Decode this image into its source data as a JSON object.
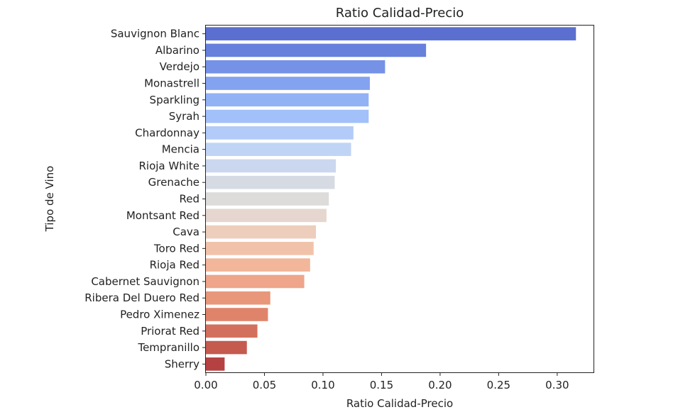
{
  "chart_data": {
    "type": "bar",
    "orientation": "horizontal",
    "title": "Ratio Calidad-Precio",
    "xlabel": "Ratio Calidad-Precio",
    "ylabel": "Tipo de Vino",
    "xlim": [
      0,
      0.331
    ],
    "xticks": [
      "0.00",
      "0.05",
      "0.10",
      "0.15",
      "0.20",
      "0.25",
      "0.30"
    ],
    "grid": false,
    "legend": "none",
    "colormap": "coolwarm",
    "categories": [
      "Sauvignon Blanc",
      "Albarino",
      "Verdejo",
      "Monastrell",
      "Sparkling",
      "Syrah",
      "Chardonnay",
      "Mencia",
      "Rioja White",
      "Grenache",
      "Red",
      "Montsant Red",
      "Cava",
      "Toro Red",
      "Rioja Red",
      "Cabernet Sauvignon",
      "Ribera Del Duero Red",
      "Pedro Ximenez",
      "Priorat Red",
      "Tempranillo",
      "Sherry"
    ],
    "values": [
      0.316,
      0.188,
      0.153,
      0.14,
      0.139,
      0.139,
      0.126,
      0.124,
      0.111,
      0.11,
      0.105,
      0.103,
      0.094,
      0.092,
      0.089,
      0.084,
      0.055,
      0.053,
      0.044,
      0.035,
      0.016
    ],
    "colors": [
      "#5b6fd0",
      "#6680dc",
      "#7592e6",
      "#83a3f0",
      "#92b2f6",
      "#a2c0f9",
      "#b2cbf8",
      "#c0d4f5",
      "#cbd7ee",
      "#d6dbe3",
      "#dedcdb",
      "#e5d7cf",
      "#edcdbc",
      "#f1c2aa",
      "#f2b69a",
      "#eea589",
      "#e8977a",
      "#df846b",
      "#d3705d",
      "#c55a4f",
      "#b64143"
    ]
  }
}
